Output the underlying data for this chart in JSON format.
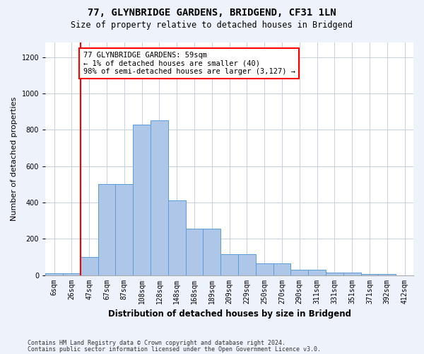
{
  "title": "77, GLYNBRIDGE GARDENS, BRIDGEND, CF31 1LN",
  "subtitle": "Size of property relative to detached houses in Bridgend",
  "xlabel": "Distribution of detached houses by size in Bridgend",
  "ylabel": "Number of detached properties",
  "bar_labels": [
    "6sqm",
    "26sqm",
    "47sqm",
    "67sqm",
    "87sqm",
    "108sqm",
    "128sqm",
    "148sqm",
    "168sqm",
    "189sqm",
    "209sqm",
    "229sqm",
    "250sqm",
    "270sqm",
    "290sqm",
    "311sqm",
    "331sqm",
    "351sqm",
    "371sqm",
    "392sqm",
    "412sqm"
  ],
  "bar_values": [
    10,
    10,
    100,
    500,
    500,
    830,
    850,
    410,
    255,
    255,
    115,
    115,
    65,
    65,
    30,
    30,
    14,
    14,
    5,
    5,
    0
  ],
  "bar_color": "#aec6e8",
  "bar_edge_color": "#5b9bd5",
  "vline_color": "red",
  "vline_position": 2,
  "annotation_text": "77 GLYNBRIDGE GARDENS: 59sqm\n← 1% of detached houses are smaller (40)\n98% of semi-detached houses are larger (3,127) →",
  "ylim": [
    0,
    1280
  ],
  "yticks": [
    0,
    200,
    400,
    600,
    800,
    1000,
    1200
  ],
  "footer_line1": "Contains HM Land Registry data © Crown copyright and database right 2024.",
  "footer_line2": "Contains public sector information licensed under the Open Government Licence v3.0.",
  "bg_color": "#eef2fa",
  "plot_bg_color": "#ffffff",
  "grid_color": "#c8d0e0",
  "title_fontsize": 10,
  "subtitle_fontsize": 8.5,
  "ylabel_fontsize": 8,
  "xlabel_fontsize": 8.5,
  "tick_fontsize": 7,
  "footer_fontsize": 6,
  "annot_fontsize": 7.5
}
